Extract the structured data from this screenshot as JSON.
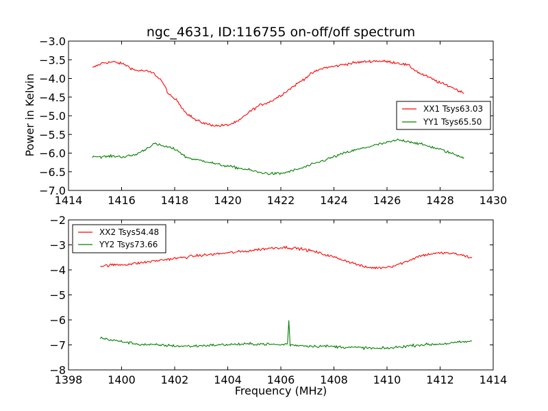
{
  "chart_data": [
    {
      "type": "line",
      "title": "ngc_4631, ID:116755 on-off/off spectrum",
      "xlabel": "",
      "ylabel": "Power in Kelvin",
      "xlim": [
        1414,
        1430
      ],
      "ylim": [
        -7.0,
        -3.0
      ],
      "xticks": [
        "1414",
        "1416",
        "1418",
        "1420",
        "1422",
        "1424",
        "1426",
        "1428",
        "1430"
      ],
      "yticks": [
        "−7.0",
        "−6.5",
        "−6.0",
        "−5.5",
        "−5.0",
        "−4.5",
        "−4.0",
        "−3.5",
        "−3.0"
      ],
      "legend_position": "right",
      "grid": false,
      "series": [
        {
          "name": "XX1 Tsys63.03",
          "color": "#ff0000",
          "x": [
            1414.9,
            1415.3,
            1415.7,
            1416.1,
            1416.5,
            1416.9,
            1417.2,
            1417.5,
            1417.8,
            1418.1,
            1418.4,
            1418.8,
            1419.2,
            1419.6,
            1420.0,
            1420.4,
            1420.8,
            1421.2,
            1421.6,
            1422.0,
            1422.4,
            1422.8,
            1423.2,
            1423.6,
            1424.0,
            1424.4,
            1424.8,
            1425.2,
            1425.6,
            1426.0,
            1426.4,
            1426.8,
            1427.2,
            1427.6,
            1428.0,
            1428.4,
            1428.9
          ],
          "y": [
            -3.72,
            -3.58,
            -3.56,
            -3.62,
            -3.78,
            -3.8,
            -3.86,
            -4.05,
            -4.45,
            -4.6,
            -4.9,
            -5.12,
            -5.22,
            -5.27,
            -5.25,
            -5.15,
            -4.9,
            -4.72,
            -4.62,
            -4.45,
            -4.25,
            -4.05,
            -3.85,
            -3.72,
            -3.68,
            -3.62,
            -3.58,
            -3.55,
            -3.53,
            -3.55,
            -3.58,
            -3.65,
            -3.85,
            -3.98,
            -4.12,
            -4.22,
            -4.4
          ]
        },
        {
          "name": "YY1 Tsys65.50",
          "color": "#008000",
          "x": [
            1414.9,
            1415.3,
            1415.7,
            1416.1,
            1416.5,
            1416.9,
            1417.2,
            1417.5,
            1417.8,
            1418.1,
            1418.4,
            1418.8,
            1419.2,
            1419.6,
            1420.0,
            1420.4,
            1420.8,
            1421.2,
            1421.6,
            1422.0,
            1422.4,
            1422.8,
            1423.2,
            1423.6,
            1424.0,
            1424.4,
            1424.8,
            1425.2,
            1425.6,
            1426.0,
            1426.4,
            1426.8,
            1427.2,
            1427.6,
            1428.0,
            1428.4,
            1428.9
          ],
          "y": [
            -6.08,
            -6.1,
            -6.08,
            -6.1,
            -6.05,
            -5.9,
            -5.75,
            -5.8,
            -5.85,
            -5.92,
            -6.1,
            -6.18,
            -6.22,
            -6.3,
            -6.35,
            -6.4,
            -6.45,
            -6.52,
            -6.55,
            -6.55,
            -6.48,
            -6.4,
            -6.3,
            -6.2,
            -6.1,
            -6.0,
            -5.92,
            -5.85,
            -5.78,
            -5.72,
            -5.65,
            -5.68,
            -5.75,
            -5.82,
            -5.9,
            -6.0,
            -6.12
          ]
        }
      ]
    },
    {
      "type": "line",
      "title": "",
      "xlabel": "Frequency (MHz)",
      "ylabel": "",
      "xlim": [
        1398,
        1414
      ],
      "ylim": [
        -8,
        -2
      ],
      "xticks": [
        "1398",
        "1400",
        "1402",
        "1404",
        "1406",
        "1408",
        "1410",
        "1412",
        "1414"
      ],
      "yticks": [
        "−8",
        "−7",
        "−6",
        "−5",
        "−4",
        "−3",
        "−2"
      ],
      "legend_position": "upper-left",
      "grid": false,
      "series": [
        {
          "name": "XX2 Tsys54.48",
          "color": "#ff0000",
          "x": [
            1399.2,
            1399.7,
            1400.2,
            1400.7,
            1401.2,
            1401.7,
            1402.2,
            1402.7,
            1403.2,
            1403.7,
            1404.2,
            1404.7,
            1405.2,
            1405.7,
            1406.2,
            1406.7,
            1407.2,
            1407.7,
            1408.2,
            1408.7,
            1409.2,
            1409.7,
            1410.2,
            1410.7,
            1411.2,
            1411.7,
            1412.2,
            1412.7,
            1413.2
          ],
          "y": [
            -3.85,
            -3.8,
            -3.78,
            -3.72,
            -3.65,
            -3.58,
            -3.52,
            -3.45,
            -3.4,
            -3.35,
            -3.3,
            -3.25,
            -3.18,
            -3.12,
            -3.1,
            -3.15,
            -3.25,
            -3.4,
            -3.55,
            -3.72,
            -3.9,
            -3.92,
            -3.85,
            -3.68,
            -3.45,
            -3.35,
            -3.32,
            -3.38,
            -3.52
          ]
        },
        {
          "name": "YY2 Tsys73.66",
          "color": "#008000",
          "x": [
            1399.2,
            1399.7,
            1400.2,
            1400.7,
            1401.2,
            1401.7,
            1402.2,
            1402.7,
            1403.2,
            1403.7,
            1404.2,
            1404.7,
            1405.2,
            1405.7,
            1406.0,
            1406.25,
            1406.3,
            1406.35,
            1406.7,
            1407.2,
            1407.7,
            1408.2,
            1408.7,
            1409.2,
            1409.7,
            1410.2,
            1410.7,
            1411.2,
            1411.7,
            1412.2,
            1412.7,
            1413.2
          ],
          "y": [
            -6.72,
            -6.82,
            -6.9,
            -6.98,
            -7.0,
            -7.02,
            -7.05,
            -7.05,
            -7.02,
            -7.0,
            -6.98,
            -6.97,
            -6.96,
            -6.98,
            -7.0,
            -6.95,
            -6.05,
            -7.0,
            -7.02,
            -7.05,
            -7.05,
            -7.08,
            -7.1,
            -7.12,
            -7.15,
            -7.12,
            -7.05,
            -7.0,
            -6.98,
            -6.95,
            -6.9,
            -6.85
          ]
        }
      ]
    }
  ]
}
